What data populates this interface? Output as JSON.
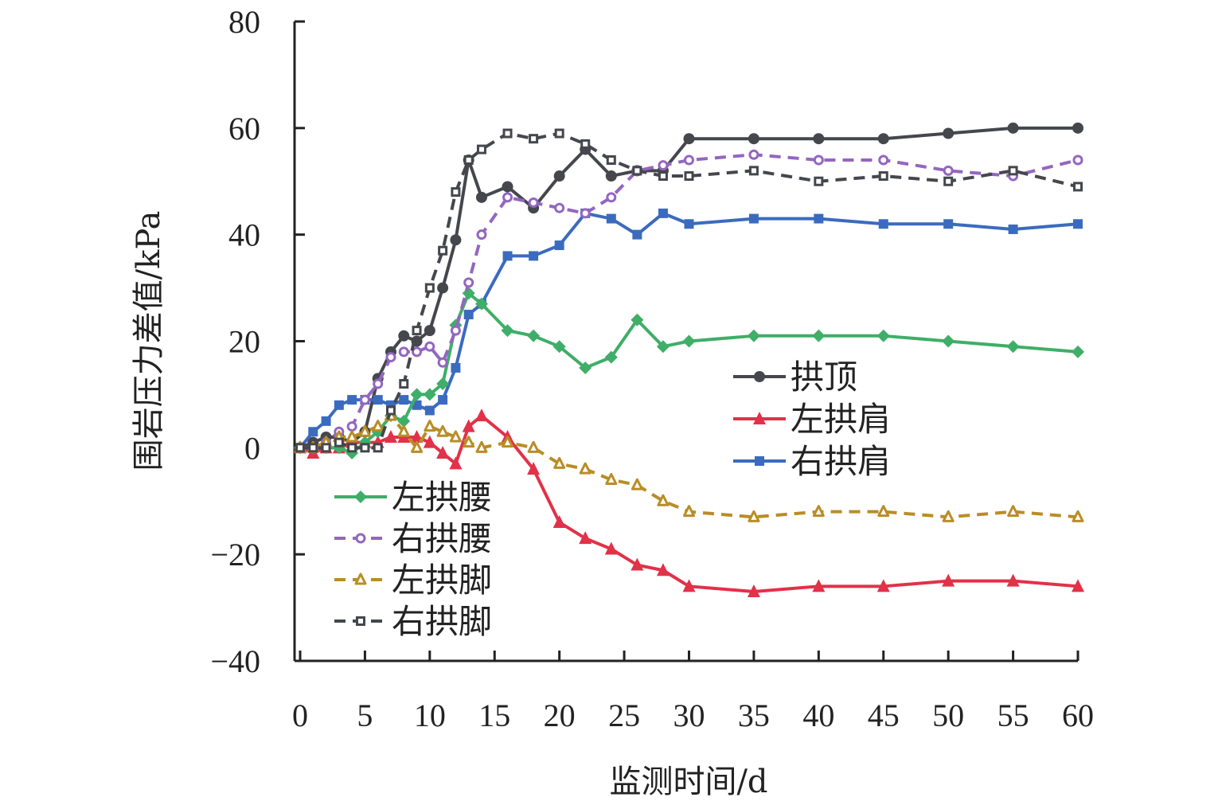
{
  "chart_data": {
    "type": "line",
    "title": "",
    "xlabel": "监测时间/d",
    "ylabel": "围岩压力差值/kPa",
    "xlim": [
      0,
      60
    ],
    "ylim": [
      -40,
      80
    ],
    "xticks": [
      0,
      5,
      10,
      15,
      20,
      25,
      30,
      35,
      40,
      45,
      50,
      55,
      60
    ],
    "yticks": [
      -40,
      -20,
      0,
      20,
      40,
      60,
      80
    ],
    "ytick_labels": [
      "−40",
      "−20",
      "0",
      "20",
      "40",
      "60",
      "80"
    ],
    "grid": false,
    "x": [
      0,
      1,
      2,
      3,
      4,
      5,
      6,
      7,
      8,
      9,
      10,
      11,
      12,
      13,
      14,
      16,
      18,
      20,
      22,
      24,
      26,
      28,
      30,
      35,
      40,
      45,
      50,
      55,
      60
    ],
    "series": [
      {
        "name": "拱顶",
        "color": "#45474d",
        "dash": false,
        "marker": "circle",
        "values": [
          0,
          1,
          2,
          2,
          1,
          3,
          13,
          18,
          21,
          20,
          22,
          30,
          39,
          54,
          47,
          49,
          45,
          51,
          56,
          51,
          52,
          52,
          58,
          58,
          58,
          58,
          59,
          60,
          60
        ]
      },
      {
        "name": "左拱肩",
        "color": "#e23148",
        "dash": false,
        "marker": "triangle",
        "values": [
          0,
          -1,
          0,
          0,
          1,
          1,
          1,
          2,
          2,
          2,
          1,
          -1,
          -3,
          4,
          6,
          2,
          -4,
          -14,
          -17,
          -19,
          -22,
          -23,
          -26,
          -27,
          -26,
          -26,
          -25,
          -25,
          -26
        ]
      },
      {
        "name": "右拱肩",
        "color": "#3b6bbf",
        "dash": false,
        "marker": "square",
        "values": [
          0,
          3,
          5,
          8,
          9,
          9,
          9,
          8,
          9,
          8,
          7,
          9,
          15,
          25,
          27,
          36,
          36,
          38,
          44,
          43,
          40,
          44,
          42,
          43,
          43,
          42,
          42,
          41,
          42
        ]
      },
      {
        "name": "左拱腰",
        "color": "#3fae68",
        "dash": false,
        "marker": "diamond",
        "values": [
          0,
          0,
          0,
          0,
          -1,
          1,
          3,
          6,
          5,
          10,
          10,
          12,
          23,
          29,
          27,
          22,
          21,
          19,
          15,
          17,
          24,
          19,
          20,
          21,
          21,
          21,
          20,
          19,
          18
        ]
      },
      {
        "name": "右拱腰",
        "color": "#9466c0",
        "dash": true,
        "marker": "hollow-circle",
        "values": [
          0,
          0,
          1,
          3,
          4,
          9,
          12,
          17,
          18,
          18,
          19,
          16,
          22,
          31,
          40,
          47,
          46,
          45,
          44,
          47,
          52,
          53,
          54,
          55,
          54,
          54,
          52,
          51,
          54
        ]
      },
      {
        "name": "左拱脚",
        "color": "#b98d26",
        "dash": true,
        "marker": "hollow-triangle",
        "values": [
          0,
          0,
          1,
          2,
          2,
          3,
          4,
          6,
          3,
          0,
          4,
          3,
          2,
          1,
          0,
          1,
          0,
          -3,
          -4,
          -6,
          -7,
          -10,
          -12,
          -13,
          -12,
          -12,
          -13,
          -12,
          -13
        ]
      },
      {
        "name": "右拱脚",
        "color": "#45474d",
        "dash": true,
        "marker": "hollow-square",
        "values": [
          0,
          0,
          0,
          1,
          0,
          0,
          0,
          7,
          12,
          22,
          30,
          37,
          48,
          54,
          56,
          59,
          58,
          59,
          57,
          54,
          52,
          51,
          51,
          52,
          50,
          51,
          50,
          52,
          49
        ]
      }
    ],
    "legend": [
      {
        "group": "right",
        "placement": "center-right",
        "items": [
          "拱顶",
          "左拱肩",
          "右拱肩"
        ]
      },
      {
        "group": "left",
        "placement": "bottom-left",
        "items": [
          "左拱腰",
          "右拱腰",
          "左拱脚",
          "右拱脚"
        ]
      }
    ]
  }
}
